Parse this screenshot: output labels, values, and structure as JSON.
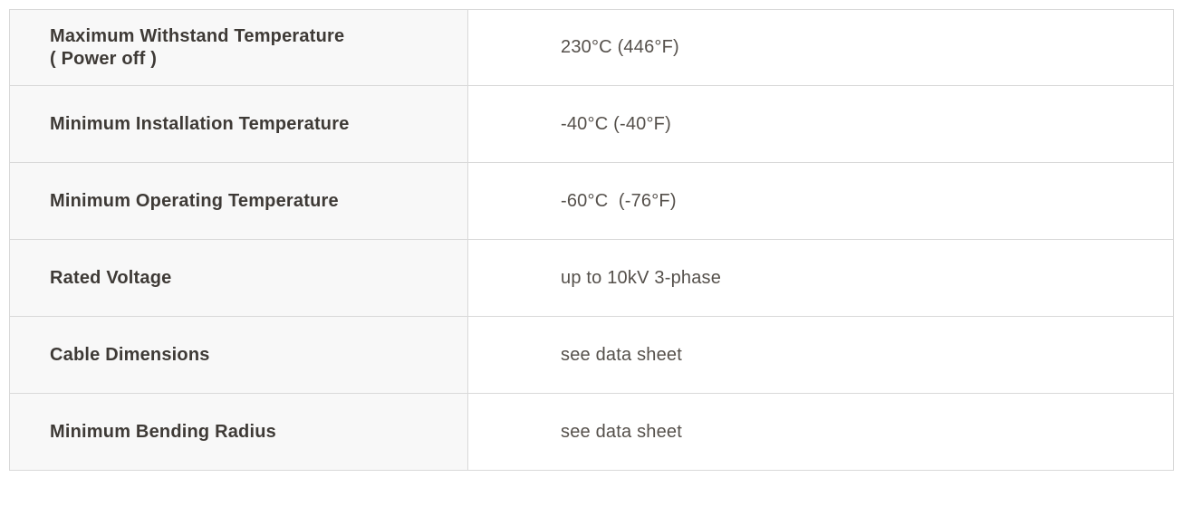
{
  "table": {
    "colors": {
      "label_bg": "#f8f8f8",
      "value_bg": "#ffffff",
      "border": "#d9d9d9",
      "label_text": "#3e3a36",
      "value_text": "#55504b"
    },
    "rows": [
      {
        "label": "Maximum Withstand Temperature\n( Power off )",
        "value": "230°C (446°F)"
      },
      {
        "label": "Minimum Installation Temperature",
        "value": "-40°C (-40°F)"
      },
      {
        "label": "Minimum Operating Temperature",
        "value": "-60°C  (-76°F)"
      },
      {
        "label": "Rated Voltage",
        "value": "up to 10kV 3-phase"
      },
      {
        "label": "Cable Dimensions",
        "value": "see data sheet"
      },
      {
        "label": "Minimum Bending Radius",
        "value": "see data sheet"
      }
    ]
  }
}
